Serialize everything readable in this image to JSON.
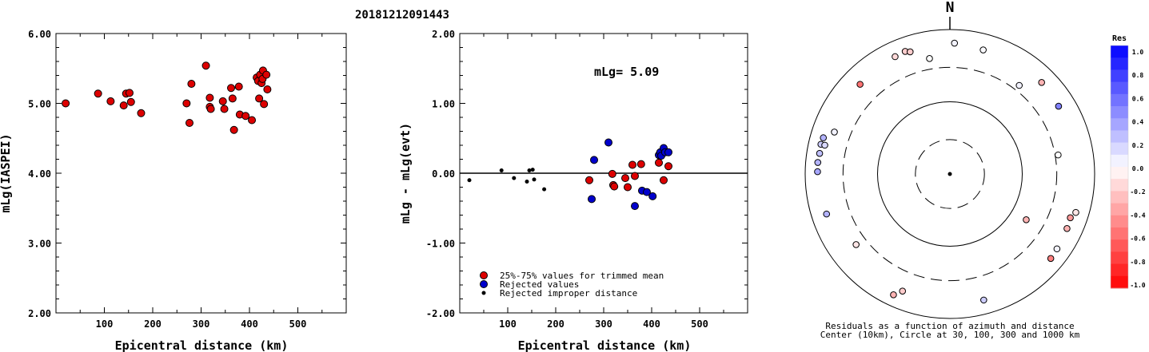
{
  "figure": {
    "title": "20181212091443",
    "caption_line1": "Residuals as a function of azimuth and distance",
    "caption_line2": "Center (10km), Circle at 30, 100, 300 and 1000 km",
    "north_label": "N"
  },
  "chart_data": [
    {
      "type": "scatter",
      "xlabel": "Epicentral distance (km)",
      "ylabel": "mLg(IASPEI)",
      "xlim": [
        0,
        600
      ],
      "ylim": [
        2.0,
        6.0
      ],
      "xticks": [
        100,
        200,
        300,
        400,
        500
      ],
      "yticks": [
        2.0,
        3.0,
        4.0,
        5.0,
        6.0
      ],
      "ytick_labels": [
        "2.00",
        "3.00",
        "4.00",
        "5.00",
        "6.00"
      ],
      "color": "#dd0000",
      "points": [
        [
          20,
          5.0
        ],
        [
          87,
          5.14
        ],
        [
          113,
          5.03
        ],
        [
          140,
          4.97
        ],
        [
          145,
          5.14
        ],
        [
          152,
          5.15
        ],
        [
          155,
          5.02
        ],
        [
          176,
          4.86
        ],
        [
          270,
          5.0
        ],
        [
          276,
          4.72
        ],
        [
          280,
          5.28
        ],
        [
          310,
          5.54
        ],
        [
          318,
          5.08
        ],
        [
          318,
          4.95
        ],
        [
          320,
          4.92
        ],
        [
          345,
          5.03
        ],
        [
          348,
          4.92
        ],
        [
          362,
          5.22
        ],
        [
          365,
          5.07
        ],
        [
          368,
          4.62
        ],
        [
          378,
          5.24
        ],
        [
          380,
          4.84
        ],
        [
          392,
          4.82
        ],
        [
          405,
          4.76
        ],
        [
          415,
          5.37
        ],
        [
          418,
          5.32
        ],
        [
          420,
          5.07
        ],
        [
          422,
          5.41
        ],
        [
          425,
          5.29
        ],
        [
          427,
          5.35
        ],
        [
          428,
          5.47
        ],
        [
          430,
          4.99
        ],
        [
          435,
          5.41
        ],
        [
          437,
          5.2
        ]
      ]
    },
    {
      "type": "scatter",
      "xlabel": "Epicentral distance (km)",
      "ylabel": "mLg - mLg(evt)",
      "xlim": [
        0,
        600
      ],
      "ylim": [
        -2.0,
        2.0
      ],
      "xticks": [
        100,
        200,
        300,
        400,
        500
      ],
      "yticks": [
        -2.0,
        -1.0,
        0.0,
        1.0,
        2.0
      ],
      "ytick_labels": [
        "-2.00",
        "-1.00",
        "0.00",
        "1.00",
        "2.00"
      ],
      "annotation": "mLg= 5.09",
      "reference_line": 0.0,
      "series": [
        {
          "name": "25%-75% values for trimmed mean",
          "color": "#dd0000",
          "points": [
            [
              270,
              -0.1
            ],
            [
              318,
              -0.01
            ],
            [
              320,
              -0.17
            ],
            [
              322,
              -0.19
            ],
            [
              345,
              -0.07
            ],
            [
              350,
              -0.2
            ],
            [
              360,
              0.12
            ],
            [
              365,
              -0.04
            ],
            [
              378,
              0.13
            ],
            [
              415,
              0.15
            ],
            [
              425,
              -0.1
            ],
            [
              435,
              0.1
            ]
          ]
        },
        {
          "name": "Rejected values",
          "color": "#0000cc",
          "points": [
            [
              275,
              -0.37
            ],
            [
              280,
              0.19
            ],
            [
              310,
              0.44
            ],
            [
              365,
              -0.47
            ],
            [
              380,
              -0.25
            ],
            [
              390,
              -0.27
            ],
            [
              402,
              -0.33
            ],
            [
              415,
              0.26
            ],
            [
              418,
              0.3
            ],
            [
              420,
              0.25
            ],
            [
              425,
              0.36
            ],
            [
              428,
              0.3
            ],
            [
              435,
              0.3
            ]
          ]
        },
        {
          "name": "Rejected improper distance",
          "color": "#000000",
          "small": true,
          "points": [
            [
              20,
              -0.1
            ],
            [
              87,
              0.04
            ],
            [
              113,
              -0.07
            ],
            [
              140,
              -0.12
            ],
            [
              145,
              0.04
            ],
            [
              152,
              0.05
            ],
            [
              155,
              -0.09
            ],
            [
              176,
              -0.23
            ]
          ]
        }
      ]
    },
    {
      "type": "polar",
      "rings_km": [
        30,
        100,
        300,
        1000
      ],
      "ring_styles": [
        "dashed",
        "solid",
        "dashed",
        "solid"
      ],
      "points": [
        {
          "az": 2,
          "dist": 650,
          "res": 0.05
        },
        {
          "az": 15,
          "dist": 600,
          "res": 0.02
        },
        {
          "az": 45,
          "dist": 620,
          "res": -0.3
        },
        {
          "az": 58,
          "dist": 590,
          "res": 0.5
        },
        {
          "az": 38,
          "dist": 360,
          "res": 0.05
        },
        {
          "az": 80,
          "dist": 330,
          "res": 0.0
        },
        {
          "az": 121,
          "dist": 170,
          "res": -0.3
        },
        {
          "az": 110,
          "dist": 590,
          "res": -0.4
        },
        {
          "az": 115,
          "dist": 610,
          "res": -0.3
        },
        {
          "az": 107,
          "dist": 660,
          "res": -0.1
        },
        {
          "az": 125,
          "dist": 640,
          "res": 0.05
        },
        {
          "az": 130,
          "dist": 660,
          "res": -0.5
        },
        {
          "az": 165,
          "dist": 640,
          "res": 0.2
        },
        {
          "az": 202,
          "dist": 560,
          "res": -0.2
        },
        {
          "az": 205,
          "dist": 700,
          "res": -0.3
        },
        {
          "az": 233,
          "dist": 420,
          "res": -0.1
        },
        {
          "az": 252,
          "dist": 620,
          "res": 0.3
        },
        {
          "az": 271,
          "dist": 675,
          "res": 0.35
        },
        {
          "az": 275,
          "dist": 680,
          "res": 0.3
        },
        {
          "az": 279,
          "dist": 665,
          "res": 0.25
        },
        {
          "az": 283,
          "dist": 675,
          "res": 0.2
        },
        {
          "az": 286,
          "dist": 660,
          "res": 0.3
        },
        {
          "az": 283,
          "dist": 595,
          "res": 0.15
        },
        {
          "az": 290,
          "dist": 500,
          "res": 0.05
        },
        {
          "az": 315,
          "dist": 570,
          "res": -0.55
        },
        {
          "az": 340,
          "dist": 640,
          "res": -0.2
        },
        {
          "az": 342,
          "dist": 600,
          "res": -0.2
        },
        {
          "az": 335,
          "dist": 620,
          "res": -0.15
        },
        {
          "az": 350,
          "dist": 420,
          "res": 0.0
        }
      ]
    }
  ],
  "colorbar": {
    "title": "Res",
    "tick_labels": [
      "1.0",
      "0.8",
      "0.6",
      "0.4",
      "0.2",
      "0.0",
      "-0.2",
      "-0.4",
      "-0.6",
      "-0.8",
      "-1.0"
    ]
  },
  "legend": {
    "items": [
      {
        "label": "25%-75% values for trimmed mean",
        "color": "#dd0000"
      },
      {
        "label": "Rejected values",
        "color": "#0000cc"
      },
      {
        "label": "Rejected improper distance",
        "color": "#000000"
      }
    ]
  }
}
